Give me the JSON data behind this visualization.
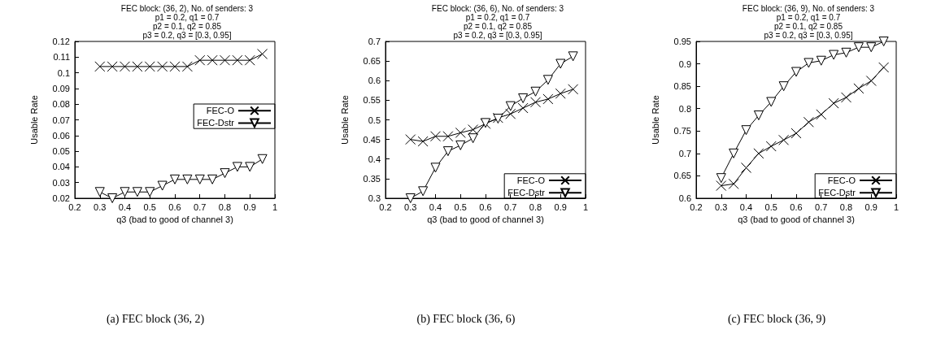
{
  "chart_data": [
    {
      "type": "line",
      "title": "FEC block: (36, 2), No. of senders: 3\np1 = 0.2, q1 = 0.7\np2 = 0.1, q2 = 0.85\np3 = 0.2, q3 = [0.3, 0.95]",
      "xlabel": "q3 (bad to good of channel 3)",
      "ylabel": "Usable Rate",
      "annotations": [
        "(a) FEC block (36, 2)"
      ],
      "x": [
        0.3,
        0.35,
        0.4,
        0.45,
        0.5,
        0.55,
        0.6,
        0.65,
        0.7,
        0.75,
        0.8,
        0.85,
        0.9,
        0.95
      ],
      "series": [
        {
          "name": "FEC-O",
          "color": "#000000",
          "marker": "cross",
          "values": [
            0.104,
            0.104,
            0.104,
            0.104,
            0.104,
            0.104,
            0.104,
            0.104,
            0.108,
            0.108,
            0.108,
            0.108,
            0.108,
            0.112
          ]
        },
        {
          "name": "FEC-Dstr",
          "color": "#000000",
          "marker": "triangle",
          "values": [
            0.024,
            0.02,
            0.024,
            0.024,
            0.024,
            0.028,
            0.032,
            0.032,
            0.032,
            0.032,
            0.036,
            0.04,
            0.04,
            0.045
          ]
        }
      ],
      "xlim": [
        0.2,
        1
      ],
      "xticks": [
        0.2,
        0.3,
        0.4,
        0.5,
        0.6,
        0.7,
        0.8,
        0.9,
        1
      ],
      "ylim": [
        0.02,
        0.12
      ],
      "yticks": [
        0.02,
        0.03,
        0.04,
        0.05,
        0.06,
        0.07,
        0.08,
        0.09,
        0.1,
        0.11,
        0.12
      ],
      "legend": "right",
      "grid": false
    },
    {
      "type": "line",
      "title": "FEC block: (36, 6), No. of senders: 3\np1 = 0.2, q1 = 0.7\np2 = 0.1, q2 = 0.85\np3 = 0.2, q3 = [0.3, 0.95]",
      "xlabel": "q3 (bad to good of channel 3)",
      "ylabel": "Usable Rate",
      "annotations": [
        "(b) FEC block (36, 6)"
      ],
      "x": [
        0.3,
        0.35,
        0.4,
        0.45,
        0.5,
        0.55,
        0.6,
        0.65,
        0.7,
        0.75,
        0.8,
        0.85,
        0.9,
        0.95
      ],
      "series": [
        {
          "name": "FEC-O",
          "color": "#000000",
          "marker": "cross",
          "values": [
            0.45,
            0.445,
            0.458,
            0.458,
            0.467,
            0.475,
            0.49,
            0.505,
            0.515,
            0.53,
            0.545,
            0.553,
            0.567,
            0.578
          ]
        },
        {
          "name": "FEC-Dstr",
          "color": "#000000",
          "marker": "triangle",
          "values": [
            0.3,
            0.318,
            0.378,
            0.42,
            0.435,
            0.453,
            0.492,
            0.503,
            0.535,
            0.555,
            0.572,
            0.602,
            0.643,
            0.662
          ]
        }
      ],
      "xlim": [
        0.2,
        1
      ],
      "xticks": [
        0.2,
        0.3,
        0.4,
        0.5,
        0.6,
        0.7,
        0.8,
        0.9,
        1
      ],
      "ylim": [
        0.3,
        0.7
      ],
      "yticks": [
        0.3,
        0.35,
        0.4,
        0.45,
        0.5,
        0.55,
        0.6,
        0.65,
        0.7
      ],
      "legend": "bottom right",
      "grid": false
    },
    {
      "type": "line",
      "title": "FEC block: (36, 9), No. of senders: 3\np1 = 0.2, q1 = 0.7\np2 = 0.1, q2 = 0.85\np3 = 0.2, q3 = [0.3, 0.95]",
      "xlabel": "q3 (bad to good of channel 3)",
      "ylabel": "Usable Rate",
      "annotations": [
        "(c) FEC block (36, 9)"
      ],
      "x": [
        0.3,
        0.35,
        0.4,
        0.45,
        0.5,
        0.55,
        0.6,
        0.65,
        0.7,
        0.75,
        0.8,
        0.85,
        0.9,
        0.95
      ],
      "series": [
        {
          "name": "FEC-O",
          "color": "#000000",
          "marker": "cross",
          "values": [
            0.628,
            0.632,
            0.668,
            0.7,
            0.716,
            0.73,
            0.745,
            0.77,
            0.787,
            0.812,
            0.825,
            0.845,
            0.862,
            0.892
          ]
        },
        {
          "name": "FEC-Dstr",
          "color": "#000000",
          "marker": "triangle",
          "values": [
            0.645,
            0.7,
            0.752,
            0.785,
            0.815,
            0.85,
            0.882,
            0.902,
            0.907,
            0.92,
            0.925,
            0.937,
            0.937,
            0.95
          ]
        }
      ],
      "xlim": [
        0.2,
        1
      ],
      "xticks": [
        0.2,
        0.3,
        0.4,
        0.5,
        0.6,
        0.7,
        0.8,
        0.9,
        1
      ],
      "ylim": [
        0.6,
        0.95
      ],
      "yticks": [
        0.6,
        0.65,
        0.7,
        0.75,
        0.8,
        0.85,
        0.9,
        0.95
      ],
      "legend": "bottom right",
      "grid": false
    }
  ]
}
